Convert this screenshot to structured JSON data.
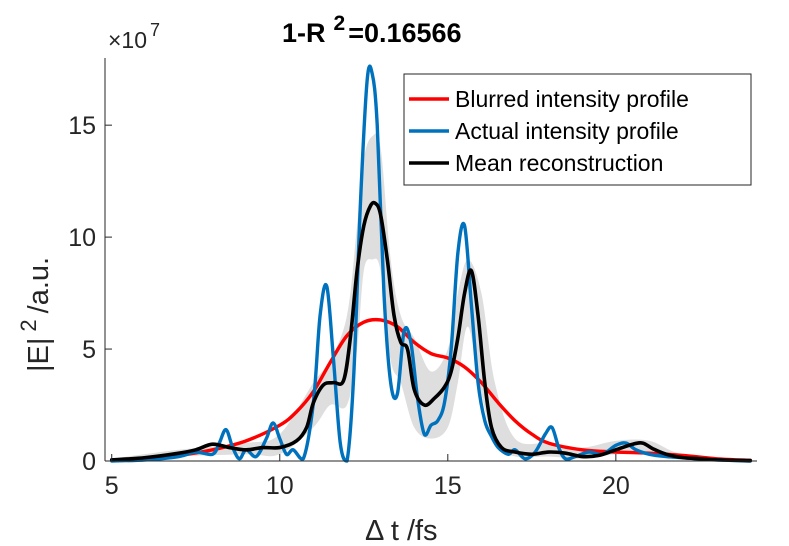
{
  "chart_data": {
    "type": "line",
    "title": "1-R",
    "title_superscript": "2",
    "title_value": "=0.16566",
    "xlabel": "Δ t /fs",
    "ylabel_main": "|E|",
    "ylabel_superscript": "2",
    "ylabel_unit": "/a.u.",
    "y_multiplier": "×10",
    "y_multiplier_exponent": "7",
    "xlim": [
      4.8,
      24.2
    ],
    "ylim": [
      0,
      18
    ],
    "xticks": [
      5,
      10,
      15,
      20
    ],
    "yticks": [
      0,
      5,
      10,
      15
    ],
    "xtick_labels": [
      "5",
      "10",
      "15",
      "20"
    ],
    "ytick_labels": [
      "0",
      "5",
      "10",
      "15"
    ],
    "legend_position": "top-right",
    "series": [
      {
        "name": "Blurred intensity profile",
        "color": "#ff0000",
        "x": [
          5,
          6,
          7,
          8,
          9,
          10,
          10.5,
          11,
          11.5,
          12,
          12.5,
          13,
          13.5,
          14,
          14.5,
          15,
          15.5,
          16,
          16.5,
          17,
          17.5,
          18,
          19,
          20,
          21,
          22,
          23,
          24
        ],
        "y": [
          0.05,
          0.1,
          0.25,
          0.5,
          0.9,
          1.6,
          2.2,
          3.1,
          4.4,
          5.6,
          6.2,
          6.3,
          6.0,
          5.3,
          4.8,
          4.6,
          4.2,
          3.5,
          2.6,
          1.8,
          1.2,
          0.8,
          0.5,
          0.4,
          0.35,
          0.25,
          0.1,
          0.03
        ]
      },
      {
        "name": "Actual intensity profile",
        "color": "#0072bd",
        "x": [
          5,
          6,
          7,
          7.5,
          8,
          8.2,
          8.4,
          8.6,
          8.8,
          9,
          9.3,
          9.6,
          9.8,
          10,
          10.2,
          10.4,
          10.7,
          11,
          11.2,
          11.4,
          11.6,
          11.8,
          12,
          12.2,
          12.4,
          12.6,
          12.75,
          12.9,
          13.1,
          13.3,
          13.5,
          13.7,
          13.9,
          14.1,
          14.3,
          14.5,
          14.7,
          14.9,
          15.1,
          15.3,
          15.5,
          15.7,
          15.9,
          16.1,
          16.3,
          16.5,
          16.8,
          17,
          17.3,
          17.6,
          17.9,
          18.1,
          18.3,
          18.5,
          18.8,
          19.2,
          19.6,
          20,
          20.3,
          20.6,
          21,
          21.5,
          22,
          22.5,
          23,
          24
        ],
        "y": [
          0,
          0.05,
          0.2,
          0.4,
          0.3,
          0.8,
          1.4,
          0.6,
          0.1,
          0.5,
          0.2,
          1.0,
          1.7,
          1.0,
          0.3,
          0.5,
          0.1,
          2.6,
          6.5,
          7.8,
          4.5,
          0.8,
          0.0,
          3.8,
          11.5,
          17.0,
          17.3,
          15.0,
          7.5,
          3.5,
          3.0,
          5.8,
          5.3,
          2.8,
          1.2,
          1.6,
          1.8,
          2.6,
          5.0,
          9.3,
          10.5,
          7.0,
          3.5,
          1.8,
          1.1,
          0.6,
          0.3,
          0.5,
          0.1,
          0.4,
          1.2,
          1.5,
          0.6,
          0.1,
          0.2,
          0.4,
          0.3,
          0.7,
          0.8,
          0.5,
          0.3,
          0.2,
          0.15,
          0.1,
          0.05,
          0
        ]
      },
      {
        "name": "Mean reconstruction",
        "color": "#000000",
        "x": [
          5,
          6,
          7,
          7.5,
          8,
          8.5,
          9,
          9.5,
          10,
          10.5,
          10.8,
          11,
          11.3,
          11.6,
          11.9,
          12.1,
          12.3,
          12.5,
          12.7,
          12.85,
          13,
          13.2,
          13.4,
          13.6,
          13.8,
          14,
          14.3,
          14.6,
          14.9,
          15.1,
          15.3,
          15.5,
          15.7,
          15.9,
          16.1,
          16.3,
          16.6,
          17,
          17.5,
          18,
          18.5,
          19,
          19.5,
          20,
          20.5,
          20.8,
          21.1,
          21.5,
          22,
          22.5,
          23,
          24
        ],
        "y": [
          0.05,
          0.15,
          0.35,
          0.5,
          0.75,
          0.6,
          0.5,
          0.6,
          0.6,
          0.9,
          1.5,
          2.6,
          3.4,
          3.5,
          3.6,
          5.5,
          8.5,
          10.5,
          11.4,
          11.5,
          11.0,
          9.0,
          6.5,
          5.3,
          5.0,
          3.2,
          2.5,
          2.8,
          3.3,
          4.0,
          5.5,
          7.5,
          8.5,
          6.5,
          3.5,
          1.5,
          0.6,
          0.4,
          0.3,
          0.4,
          0.35,
          0.2,
          0.25,
          0.5,
          0.75,
          0.8,
          0.55,
          0.3,
          0.15,
          0.1,
          0.05,
          0.02
        ]
      }
    ],
    "uncertainty_band": {
      "name": "reconstruction-uncertainty",
      "color": "#dedede",
      "x": [
        5,
        7,
        9,
        10,
        11,
        11.5,
        12,
        12.3,
        12.5,
        12.75,
        13,
        13.3,
        13.6,
        14,
        14.5,
        15,
        15.3,
        15.6,
        16,
        16.4,
        17,
        18,
        19,
        20,
        21,
        22,
        24
      ],
      "upper": [
        0.1,
        0.5,
        0.8,
        1.2,
        3.5,
        4.5,
        6.5,
        10.5,
        13.5,
        14.5,
        14.0,
        9.0,
        6.5,
        5.5,
        4.0,
        5.0,
        7.5,
        9.0,
        7.5,
        3.5,
        1.0,
        0.8,
        0.6,
        0.9,
        0.9,
        0.3,
        0.05
      ],
      "lower": [
        0.0,
        0.2,
        0.3,
        0.3,
        1.5,
        2.5,
        2.5,
        5.0,
        8.5,
        9.0,
        8.5,
        4.5,
        3.5,
        1.5,
        1.0,
        1.5,
        3.5,
        6.0,
        3.0,
        0.8,
        0.2,
        0.2,
        0.1,
        0.3,
        0.3,
        0.05,
        0.0
      ]
    }
  }
}
